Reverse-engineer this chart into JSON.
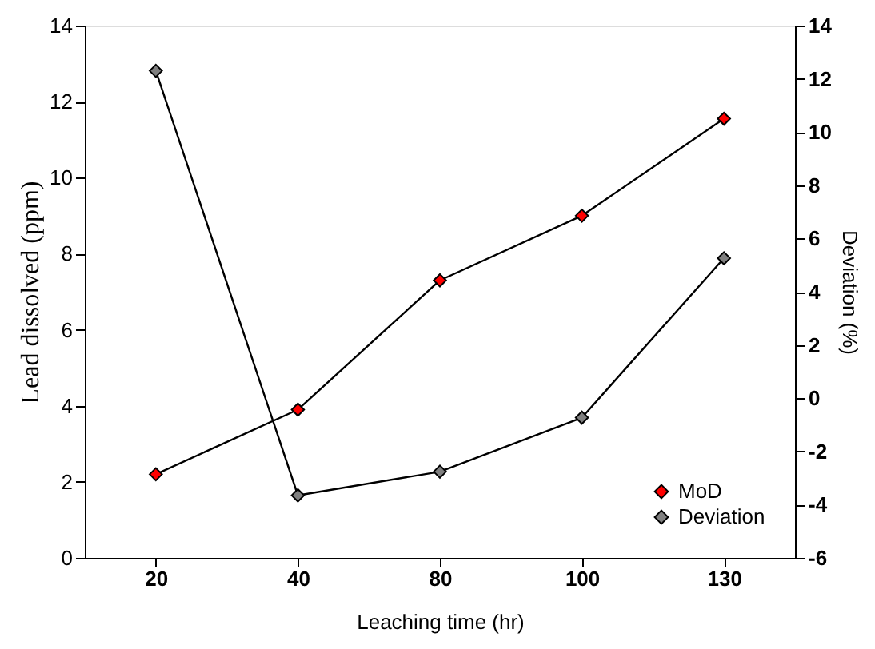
{
  "chart_data": {
    "type": "line",
    "xlabel": "Leaching time (hr)",
    "ylabel": "Lead dissolved (ppm)",
    "y2label": "Deviation (%)",
    "categories": [
      "20",
      "40",
      "80",
      "100",
      "130"
    ],
    "series": [
      {
        "name": "MoD",
        "color": "#ff0000",
        "values": [
          2.2,
          3.9,
          7.3,
          9.0,
          11.55
        ]
      },
      {
        "name": "Deviation",
        "color": "#808080",
        "axis": "y2",
        "values": [
          12.3,
          -3.65,
          -2.76,
          -0.73,
          5.26
        ]
      }
    ],
    "ylim": [
      0,
      14
    ],
    "yticks": [
      0,
      2,
      4,
      6,
      8,
      10,
      12,
      14
    ],
    "y2lim": [
      -6,
      14
    ],
    "y2ticks": [
      -6,
      -4,
      -2,
      0,
      2,
      4,
      6,
      8,
      10,
      12,
      14
    ],
    "grid": false,
    "legend": "bottom right",
    "marker": "diamond",
    "line_style": "solid"
  }
}
